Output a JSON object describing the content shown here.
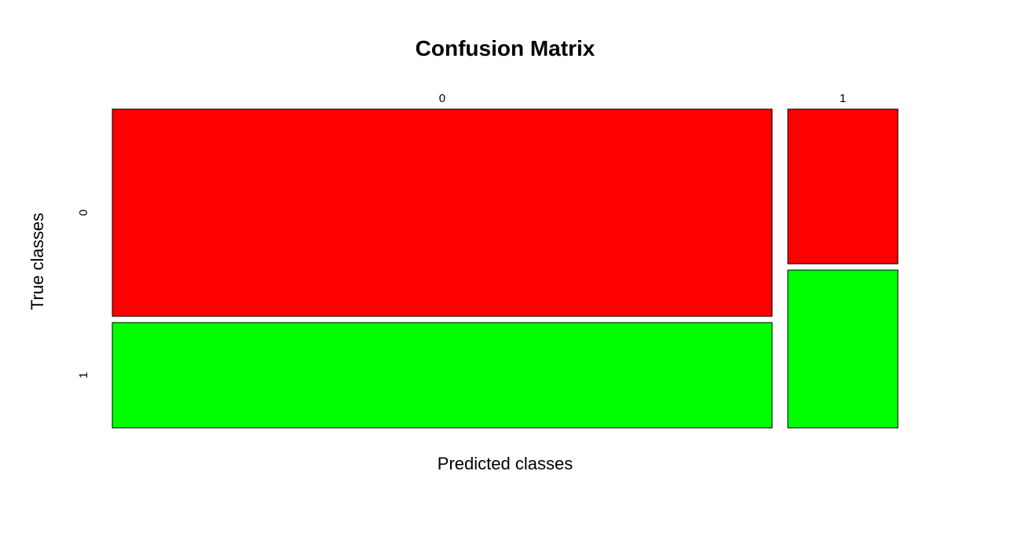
{
  "chart_data": {
    "type": "mosaic",
    "title": "Confusion Matrix",
    "xlabel": "Predicted classes",
    "ylabel": "True classes",
    "predicted_categories": [
      "0",
      "1"
    ],
    "true_categories": [
      "0",
      "1"
    ],
    "colors": {
      "0": "#ff0000",
      "1": "#00ff00"
    },
    "predicted_share": [
      0.857,
      0.143
    ],
    "true_share_within_predicted": {
      "0": [
        0.663,
        0.337
      ],
      "1": [
        0.495,
        0.505
      ]
    }
  }
}
